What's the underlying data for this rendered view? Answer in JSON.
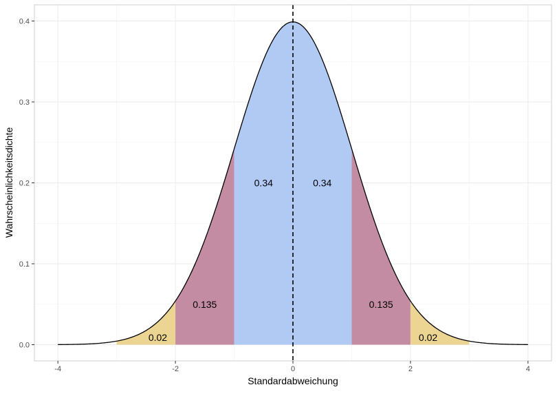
{
  "chart_data": {
    "type": "area",
    "title": "",
    "xlabel": "Standardabweichung",
    "ylabel": "Wahrscheinlichkeitsdichte",
    "xlim": [
      -4.4,
      4.4
    ],
    "ylim": [
      -0.02,
      0.42
    ],
    "x_ticks": [
      -4,
      -2,
      0,
      2,
      4
    ],
    "y_ticks": [
      0.0,
      0.1,
      0.2,
      0.3,
      0.4
    ],
    "y_tick_labels": [
      "0.0",
      "0.1",
      "0.2",
      "0.3",
      "0.4"
    ],
    "grid": true,
    "curve": "standard normal density",
    "mean_line": {
      "x": 0,
      "style": "dashed"
    },
    "regions": [
      {
        "from": -3,
        "to": -2,
        "color": "#ecd592",
        "label": "0.02",
        "label_x": -2.3,
        "label_y": 0.009
      },
      {
        "from": -2,
        "to": -1,
        "color": "#c48ca2",
        "label": "0.135",
        "label_x": -1.5,
        "label_y": 0.05
      },
      {
        "from": -1,
        "to": 0,
        "color": "#b0caf4",
        "label": "0.34",
        "label_x": -0.5,
        "label_y": 0.2
      },
      {
        "from": 0,
        "to": 1,
        "color": "#b0caf4",
        "label": "0.34",
        "label_x": 0.5,
        "label_y": 0.2
      },
      {
        "from": 1,
        "to": 2,
        "color": "#c48ca2",
        "label": "0.135",
        "label_x": 1.5,
        "label_y": 0.05
      },
      {
        "from": 2,
        "to": 3,
        "color": "#ecd592",
        "label": "0.02",
        "label_x": 2.3,
        "label_y": 0.009
      }
    ]
  }
}
